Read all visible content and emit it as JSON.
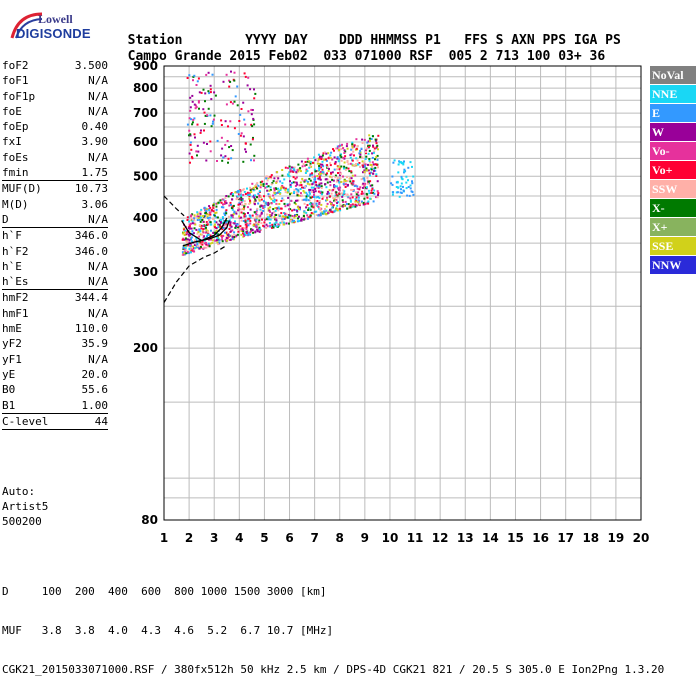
{
  "logo": {
    "top": "Lowell",
    "bottom": "DIGISONDE"
  },
  "header": {
    "row1": [
      "Station",
      "YYYY",
      "DAY",
      "DDD",
      "HHMMSS",
      "P1",
      "FFS",
      "S",
      "AXN",
      "PPS",
      "IGA",
      "PS"
    ],
    "row2": [
      "Campo Grande",
      "2015",
      "Feb02",
      "033",
      "071000",
      "RSF",
      "005",
      "2",
      "713",
      "100",
      "03+",
      "36"
    ]
  },
  "params": {
    "g1": [
      {
        "label": "foF2",
        "value": "3.500"
      },
      {
        "label": "foF1",
        "value": "N/A"
      },
      {
        "label": "foF1p",
        "value": "N/A"
      },
      {
        "label": "foE",
        "value": "N/A"
      },
      {
        "label": "foEp",
        "value": "0.40"
      },
      {
        "label": "fxI",
        "value": "3.90"
      },
      {
        "label": "foEs",
        "value": "N/A"
      },
      {
        "label": "fmin",
        "value": "1.75"
      }
    ],
    "g2": [
      {
        "label": "MUF(D)",
        "value": "10.73"
      },
      {
        "label": "M(D)",
        "value": "3.06"
      },
      {
        "label": "D",
        "value": "N/A"
      }
    ],
    "g3": [
      {
        "label": "h`F",
        "value": "346.0"
      },
      {
        "label": "h`F2",
        "value": "346.0"
      },
      {
        "label": "h`E",
        "value": "N/A"
      },
      {
        "label": "h`Es",
        "value": "N/A"
      }
    ],
    "g4": [
      {
        "label": "hmF2",
        "value": "344.4"
      },
      {
        "label": "hmF1",
        "value": "N/A"
      },
      {
        "label": "hmE",
        "value": "110.0"
      },
      {
        "label": "yF2",
        "value": "35.9"
      },
      {
        "label": "yF1",
        "value": "N/A"
      },
      {
        "label": "yE",
        "value": "20.0"
      },
      {
        "label": "B0",
        "value": "55.6"
      },
      {
        "label": "B1",
        "value": "1.00"
      }
    ],
    "g5": [
      {
        "label": "C-level",
        "value": "44"
      }
    ]
  },
  "auto": {
    "line1": "Auto:",
    "line2": "Artist5",
    "line3": "500200"
  },
  "bottom": {
    "row1": "D     100  200  400  600  800 1000 1500 3000 [km]",
    "row2": "MUF   3.8  3.8  4.0  4.3  4.6  5.2  6.7 10.7 [MHz]",
    "row3": "CGK21_2015033071000.RSF / 380fx512h 50 kHz 2.5 km / DPS-4D CGK21 821 / 20.5 S 305.0 E Ion2Png 1.3.20"
  },
  "legend": [
    {
      "label": "NoVal",
      "color": "#808080"
    },
    {
      "label": "NNE",
      "color": "#19d7f5"
    },
    {
      "label": "E",
      "color": "#3399ff"
    },
    {
      "label": "W",
      "color": "#990099"
    },
    {
      "label": "Vo-",
      "color": "#e6319c"
    },
    {
      "label": "Vo+",
      "color": "#ff0033"
    },
    {
      "label": "SSW",
      "color": "#ffb0a8"
    },
    {
      "label": "X-",
      "color": "#007a00"
    },
    {
      "label": "X+",
      "color": "#88b35e"
    },
    {
      "label": "SSE",
      "color": "#d1d11a"
    },
    {
      "label": "NNW",
      "color": "#2a2ad9"
    }
  ],
  "chart_data": {
    "type": "scatter",
    "title": "",
    "xlabel": "",
    "ylabel": "",
    "xlim": [
      1,
      20
    ],
    "ylim": [
      80,
      900
    ],
    "x_ticks": [
      1,
      2,
      3,
      4,
      5,
      6,
      7,
      8,
      9,
      10,
      11,
      12,
      13,
      14,
      15,
      16,
      17,
      18,
      19,
      20
    ],
    "y_ticks": [
      80,
      200,
      300,
      400,
      500,
      600,
      700,
      800,
      900
    ],
    "y_scale": "log",
    "grid": true,
    "legend_position": "right",
    "echo_clusters": [
      {
        "name": "main F2 trace",
        "x_range": [
          1.7,
          9.5
        ],
        "y_low": [
          330,
          440
        ],
        "y_high": [
          400,
          640
        ],
        "colors": [
          "SSW",
          "Vo-",
          "SSE",
          "E",
          "NNE",
          "X-",
          "Vo+",
          "W"
        ]
      },
      {
        "name": "high oblique echoes",
        "x_range": [
          1.9,
          4.6
        ],
        "y_range": [
          540,
          880
        ],
        "colors": [
          "W",
          "Vo-",
          "E",
          "Vo+",
          "X-"
        ]
      },
      {
        "name": "far echoes",
        "x_range": [
          10.0,
          10.9
        ],
        "y_range": [
          450,
          550
        ],
        "colors": [
          "E",
          "NNE"
        ]
      }
    ],
    "profile_curve": [
      [
        1.75,
        345
      ],
      [
        2.2,
        352
      ],
      [
        2.8,
        358
      ],
      [
        3.2,
        365
      ],
      [
        3.5,
        380
      ],
      [
        3.6,
        395
      ]
    ],
    "extrapolated_curve": [
      [
        1.0,
        255
      ],
      [
        1.5,
        285
      ],
      [
        2.0,
        310
      ],
      [
        2.6,
        325
      ],
      [
        3.0,
        332
      ],
      [
        3.5,
        346
      ]
    ],
    "o_trace_curve": [
      [
        1.7,
        395
      ],
      [
        2.0,
        370
      ],
      [
        2.5,
        355
      ],
      [
        3.0,
        365
      ],
      [
        3.3,
        380
      ],
      [
        3.5,
        400
      ]
    ],
    "dashed_top": [
      [
        1.0,
        450
      ],
      [
        1.5,
        420
      ],
      [
        1.8,
        405
      ]
    ]
  }
}
